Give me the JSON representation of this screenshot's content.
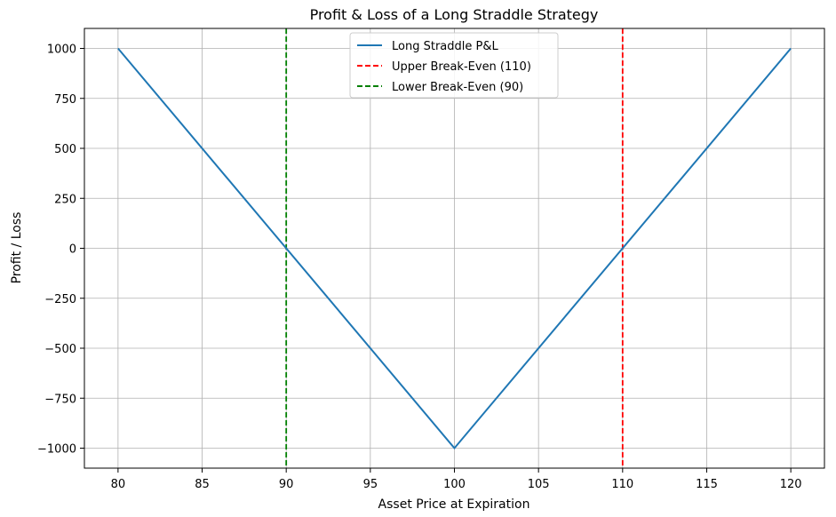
{
  "chart_data": {
    "type": "line",
    "title": "Profit & Loss of a Long Straddle Strategy",
    "xlabel": "Asset Price at Expiration",
    "ylabel": "Profit / Loss",
    "xlim": [
      78,
      122
    ],
    "ylim": [
      -1100,
      1100
    ],
    "x_ticks": [
      80,
      85,
      90,
      95,
      100,
      105,
      110,
      115,
      120
    ],
    "x_tick_labels": [
      "80",
      "85",
      "90",
      "95",
      "100",
      "105",
      "110",
      "115",
      "120"
    ],
    "y_ticks": [
      1000,
      750,
      500,
      250,
      0,
      -250,
      -500,
      -750,
      -1000
    ],
    "y_tick_labels": [
      "1000",
      "750",
      "500",
      "250",
      "0",
      "−250",
      "−500",
      "−750",
      "−1000"
    ],
    "grid": true,
    "legend_position": "top-center",
    "series": [
      {
        "name": "Long Straddle P&L",
        "kind": "line",
        "color": "#1f77b4",
        "x": [
          80,
          100,
          120
        ],
        "y": [
          1000,
          -1000,
          1000
        ]
      }
    ],
    "vlines": [
      {
        "name": "Upper Break-Even (110)",
        "x": 110,
        "color": "#ff0000",
        "style": "dashed"
      },
      {
        "name": "Lower Break-Even (90)",
        "x": 90,
        "color": "#008000",
        "style": "dashed"
      }
    ]
  }
}
